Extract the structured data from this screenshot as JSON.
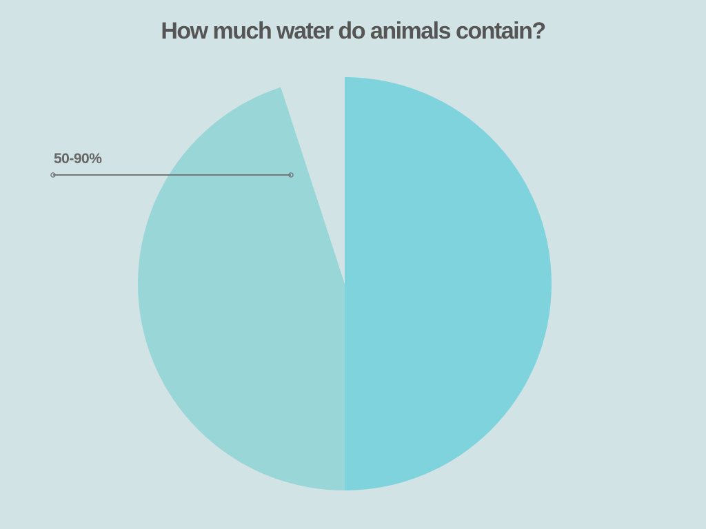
{
  "chart_data": {
    "type": "pie",
    "title": "How much water do animals contain?",
    "categories": [
      null,
      "50-90%",
      null
    ],
    "values": [
      50,
      45,
      5
    ],
    "colors": [
      "#7fd3dc",
      "#98d6d7",
      "#d1e3e4"
    ]
  }
}
